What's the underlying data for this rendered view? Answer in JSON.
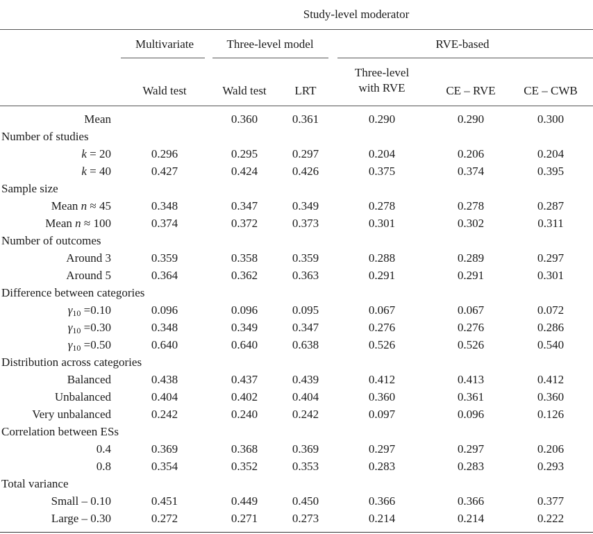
{
  "header": {
    "super": "Study-level moderator",
    "groups": {
      "multivariate": "Multivariate",
      "three_level": "Three-level model",
      "rve": "RVE-based"
    },
    "cols": {
      "mv_wald": "Wald test",
      "tl_wald": "Wald test",
      "tl_lrt": "LRT",
      "rve_tl_1": "Three-level",
      "rve_tl_2": "with RVE",
      "ce_rve": "CE – RVE",
      "ce_cwb": "CE – CWB"
    }
  },
  "rows": [
    {
      "type": "data",
      "label": "Mean",
      "values": [
        "",
        "0.360",
        "0.361",
        "0.290",
        "0.290",
        "0.300"
      ]
    },
    {
      "type": "section",
      "label": "Number of studies"
    },
    {
      "type": "data",
      "label_var": "k",
      "label_rest": " = 20",
      "values": [
        "0.296",
        "0.295",
        "0.297",
        "0.204",
        "0.206",
        "0.204"
      ]
    },
    {
      "type": "data",
      "label_var": "k",
      "label_rest": " = 40",
      "values": [
        "0.427",
        "0.424",
        "0.426",
        "0.375",
        "0.374",
        "0.395"
      ]
    },
    {
      "type": "section",
      "label": "Sample size"
    },
    {
      "type": "data",
      "label_pre": "Mean ",
      "label_var": "n",
      "label_rest": " ≈ 45",
      "values": [
        "0.348",
        "0.347",
        "0.349",
        "0.278",
        "0.278",
        "0.287"
      ]
    },
    {
      "type": "data",
      "label_pre": "Mean ",
      "label_var": "n",
      "label_rest": " ≈ 100",
      "values": [
        "0.374",
        "0.372",
        "0.373",
        "0.301",
        "0.302",
        "0.311"
      ]
    },
    {
      "type": "section",
      "label": "Number of outcomes"
    },
    {
      "type": "data",
      "label": "Around 3",
      "values": [
        "0.359",
        "0.358",
        "0.359",
        "0.288",
        "0.289",
        "0.297"
      ]
    },
    {
      "type": "data",
      "label": "Around 5",
      "values": [
        "0.364",
        "0.362",
        "0.363",
        "0.291",
        "0.291",
        "0.301"
      ]
    },
    {
      "type": "section",
      "label": "Difference between categories"
    },
    {
      "type": "data",
      "label_var": "γ",
      "label_sub": "10",
      "label_rest": " =0.10",
      "values": [
        "0.096",
        "0.096",
        "0.095",
        "0.067",
        "0.067",
        "0.072"
      ]
    },
    {
      "type": "data",
      "label_var": "γ",
      "label_sub": "10",
      "label_rest": " =0.30",
      "values": [
        "0.348",
        "0.349",
        "0.347",
        "0.276",
        "0.276",
        "0.286"
      ]
    },
    {
      "type": "data",
      "label_var": "γ",
      "label_sub": "10",
      "label_rest": " =0.50",
      "values": [
        "0.640",
        "0.640",
        "0.638",
        "0.526",
        "0.526",
        "0.540"
      ]
    },
    {
      "type": "section",
      "label": "Distribution across categories"
    },
    {
      "type": "data",
      "label": "Balanced",
      "values": [
        "0.438",
        "0.437",
        "0.439",
        "0.412",
        "0.413",
        "0.412"
      ]
    },
    {
      "type": "data",
      "label": "Unbalanced",
      "values": [
        "0.404",
        "0.402",
        "0.404",
        "0.360",
        "0.361",
        "0.360"
      ]
    },
    {
      "type": "data",
      "label": "Very unbalanced",
      "values": [
        "0.242",
        "0.240",
        "0.242",
        "0.097",
        "0.096",
        "0.126"
      ]
    },
    {
      "type": "section",
      "label": "Correlation between ESs"
    },
    {
      "type": "data",
      "label": "0.4",
      "values": [
        "0.369",
        "0.368",
        "0.369",
        "0.297",
        "0.297",
        "0.206"
      ]
    },
    {
      "type": "data",
      "label": "0.8",
      "values": [
        "0.354",
        "0.352",
        "0.353",
        "0.283",
        "0.283",
        "0.293"
      ]
    },
    {
      "type": "section",
      "label": "Total variance"
    },
    {
      "type": "data",
      "label": "Small – 0.10",
      "values": [
        "0.451",
        "0.449",
        "0.450",
        "0.366",
        "0.366",
        "0.377"
      ]
    },
    {
      "type": "data",
      "label": "Large – 0.30",
      "values": [
        "0.272",
        "0.271",
        "0.273",
        "0.214",
        "0.214",
        "0.222"
      ]
    }
  ]
}
